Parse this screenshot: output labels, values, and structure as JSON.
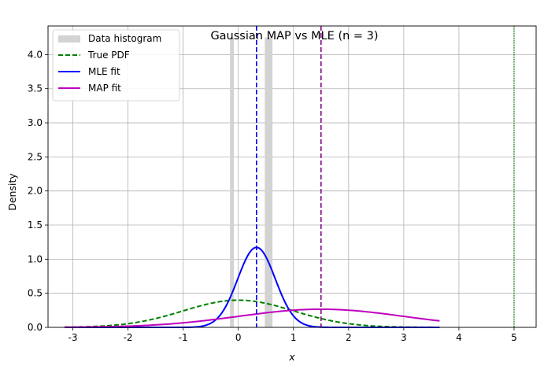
{
  "chart_data": {
    "type": "line",
    "title": "Gaussian MAP vs MLE (n = 3)",
    "xlabel": "x",
    "ylabel": "Density",
    "xlim": [
      -3.45,
      5.4
    ],
    "ylim": [
      0,
      4.42
    ],
    "xticks": [
      -3,
      -2,
      -1,
      0,
      1,
      2,
      3,
      4,
      5
    ],
    "yticks": [
      0.0,
      0.5,
      1.0,
      1.5,
      2.0,
      2.5,
      3.0,
      3.5,
      4.0
    ],
    "grid": true,
    "legend_position": "top-left",
    "histogram": {
      "name": "Data histogram",
      "color": "#d3d3d3",
      "bins": [
        {
          "x0": -0.15,
          "x1": -0.08,
          "height": 4.25
        },
        {
          "x0": 0.48,
          "x1": 0.62,
          "height": 4.25
        }
      ]
    },
    "curves": [
      {
        "name": "True PDF",
        "color": "#008000",
        "style": "dashed",
        "kind": "normal",
        "mu": 0.0,
        "sigma": 1.0,
        "x_range": [
          -3.15,
          3.65
        ]
      },
      {
        "name": "MLE fit",
        "color": "#0000ff",
        "style": "solid",
        "kind": "normal",
        "mu": 0.33,
        "sigma": 0.34,
        "x_range": [
          -3.15,
          3.65
        ]
      },
      {
        "name": "MAP fit",
        "color": "#bf00bf",
        "style": "solid",
        "kind": "normal",
        "mu": 1.5,
        "sigma": 1.5,
        "x_range": [
          -3.15,
          3.65
        ]
      }
    ],
    "vlines": [
      {
        "x": 0.33,
        "color": "#0000ff",
        "style": "dashed"
      },
      {
        "x": 1.5,
        "color": "#800080",
        "style": "dashed"
      },
      {
        "x": 5.0,
        "color": "#008000",
        "style": "dotted"
      }
    ]
  }
}
